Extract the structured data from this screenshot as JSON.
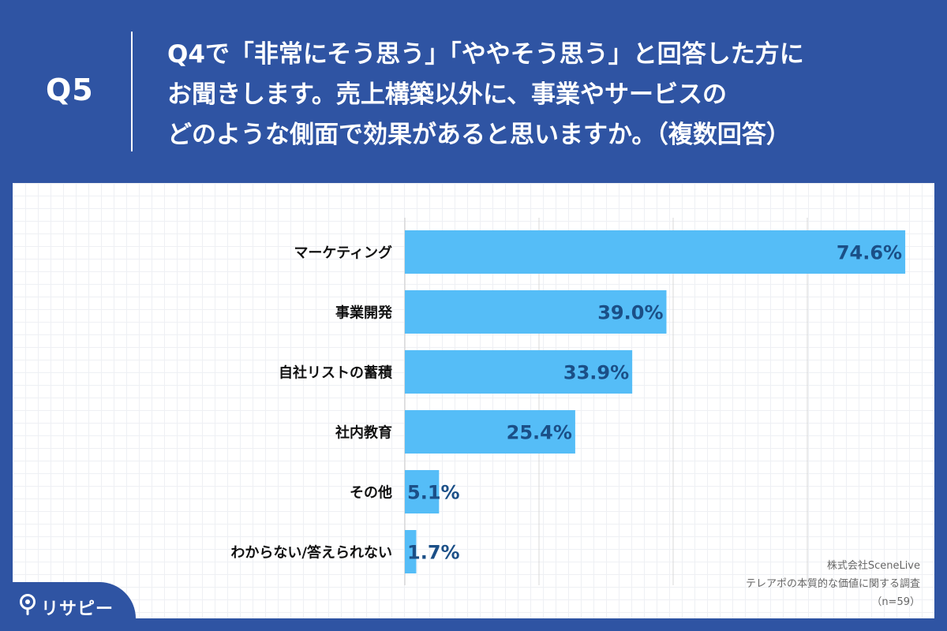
{
  "header": {
    "q_label": "Q5",
    "question_lines": [
      "Q4で「非常にそう思う」「ややそう思う」と回答した方に",
      "お聞きします。売上構築以外に、事業やサービスの",
      "どのような側面で効果があると思いますか。（複数回答）"
    ]
  },
  "chart_data": {
    "type": "bar",
    "orientation": "horizontal",
    "categories": [
      "マーケティング",
      "事業開発",
      "自社リストの蓄積",
      "社内教育",
      "その他",
      "わからない/答えられない"
    ],
    "values": [
      74.6,
      39.0,
      33.9,
      25.4,
      5.1,
      1.7
    ],
    "value_labels": [
      "74.6%",
      "39.0%",
      "33.9%",
      "25.4%",
      "5.1%",
      "1.7%"
    ],
    "xlim": [
      0,
      80
    ],
    "x_gridlines": [
      0,
      20,
      40,
      60,
      80
    ],
    "bar_color": "#55bdf7",
    "label_color": "#1b4f87",
    "grid": true,
    "legend": "none"
  },
  "source": {
    "lines": [
      "株式会社SceneLive",
      "テレアポの本質的な価値に関する調査",
      "（n=59）"
    ]
  },
  "logo": {
    "icon": "map-pin-icon",
    "text": "リサピー"
  }
}
